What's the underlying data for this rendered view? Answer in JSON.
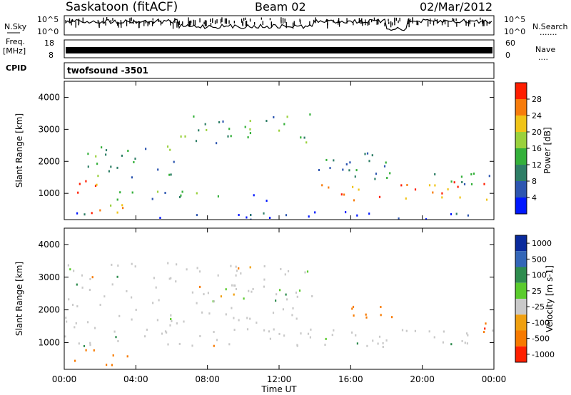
{
  "header": {
    "station": "Saskatoon (fitACF)",
    "beam": "Beam 02",
    "date": "02/Mar/2012"
  },
  "strips": {
    "nsky_label": "N.Sky",
    "nsearch_label": "N.Search",
    "nsearch_dots": ".......",
    "noise_ticks": [
      "10^5",
      "10^0"
    ],
    "freq_label": "Freq.",
    "freq_unit": "[MHz]",
    "freq_ticks": [
      "18",
      "8"
    ],
    "nave_label": "Nave",
    "nave_dots": "....",
    "nave_ticks": [
      "60",
      "0"
    ],
    "cpid_label": "CPID",
    "cpid_value": "twofsound -3501"
  },
  "chart_data": [
    {
      "type": "heatmap",
      "panel": "power",
      "ylabel": "Slant Range [km]",
      "xlabel": "",
      "x_ticks": [
        "00:00",
        "04:00",
        "08:00",
        "12:00",
        "16:00",
        "20:00",
        "00:00"
      ],
      "xlim_hours": [
        0,
        24
      ],
      "y_ticks": [
        1000,
        2000,
        3000,
        4000
      ],
      "ylim": [
        180,
        4500
      ],
      "colorbar": {
        "label": "Power [dB]",
        "ticks": [
          "4",
          "8",
          "12",
          "16",
          "20",
          "24",
          "28"
        ],
        "colors": [
          "#0018ff",
          "#2d56b0",
          "#2e7e66",
          "#34b03a",
          "#9ad13c",
          "#f0c418",
          "#f77c0c",
          "#ff1e00"
        ],
        "range": [
          0,
          30
        ]
      },
      "regions": [
        {
          "t": [
            0,
            2.5
          ],
          "r": [
            950,
            1450
          ],
          "level": 27
        },
        {
          "t": [
            0,
            3.5
          ],
          "r": [
            300,
            700
          ],
          "level": 24
        },
        {
          "t": [
            1,
            6.5
          ],
          "r": [
            1500,
            2500
          ],
          "level": 11
        },
        {
          "t": [
            6,
            13.8
          ],
          "r": [
            2600,
            3500
          ],
          "level": 12
        },
        {
          "t": [
            2.5,
            8
          ],
          "r": [
            700,
            1100
          ],
          "level": 10
        },
        {
          "t": [
            8.5,
            11.5
          ],
          "r": [
            800,
            1000
          ],
          "level": 8
        },
        {
          "t": [
            14.2,
            24
          ],
          "r": [
            800,
            1400
          ],
          "level": 25
        },
        {
          "t": [
            14.2,
            24
          ],
          "r": [
            1300,
            1700
          ],
          "level": 10
        },
        {
          "t": [
            14,
            19
          ],
          "r": [
            1700,
            2300
          ],
          "level": 9
        },
        {
          "t": [
            0,
            24
          ],
          "r": [
            200,
            450
          ],
          "level": 3
        }
      ]
    },
    {
      "type": "heatmap",
      "panel": "velocity",
      "ylabel": "Slant Range [km]",
      "xlabel": "Time UT",
      "x_ticks": [
        "00:00",
        "04:00",
        "08:00",
        "12:00",
        "16:00",
        "20:00",
        "00:00"
      ],
      "xlim_hours": [
        0,
        24
      ],
      "y_ticks": [
        1000,
        2000,
        3000,
        4000
      ],
      "ylim": [
        180,
        4500
      ],
      "colorbar": {
        "label": "Velocity [m s-1]",
        "ticks": [
          "1000",
          "500",
          "100",
          "25",
          "-25",
          "-100",
          "-500",
          "-1000"
        ],
        "colors": [
          "#0a2a9c",
          "#3366b8",
          "#2e8c4e",
          "#5acb2c",
          "#c9c9c9",
          "#f0a010",
          "#f77a00",
          "#ff2000"
        ]
      },
      "regions": [
        {
          "t": [
            0,
            3.5
          ],
          "r": [
            300,
            800
          ],
          "value": -300
        },
        {
          "t": [
            0,
            14
          ],
          "r": [
            900,
            3500
          ],
          "value": 0
        },
        {
          "t": [
            14.2,
            24
          ],
          "r": [
            900,
            1500
          ],
          "value": 0
        },
        {
          "t": [
            15.5,
            19
          ],
          "r": [
            1700,
            2200
          ],
          "value": -400
        },
        {
          "t": [
            23,
            24
          ],
          "r": [
            1300,
            1800
          ],
          "value": -500
        }
      ]
    }
  ]
}
